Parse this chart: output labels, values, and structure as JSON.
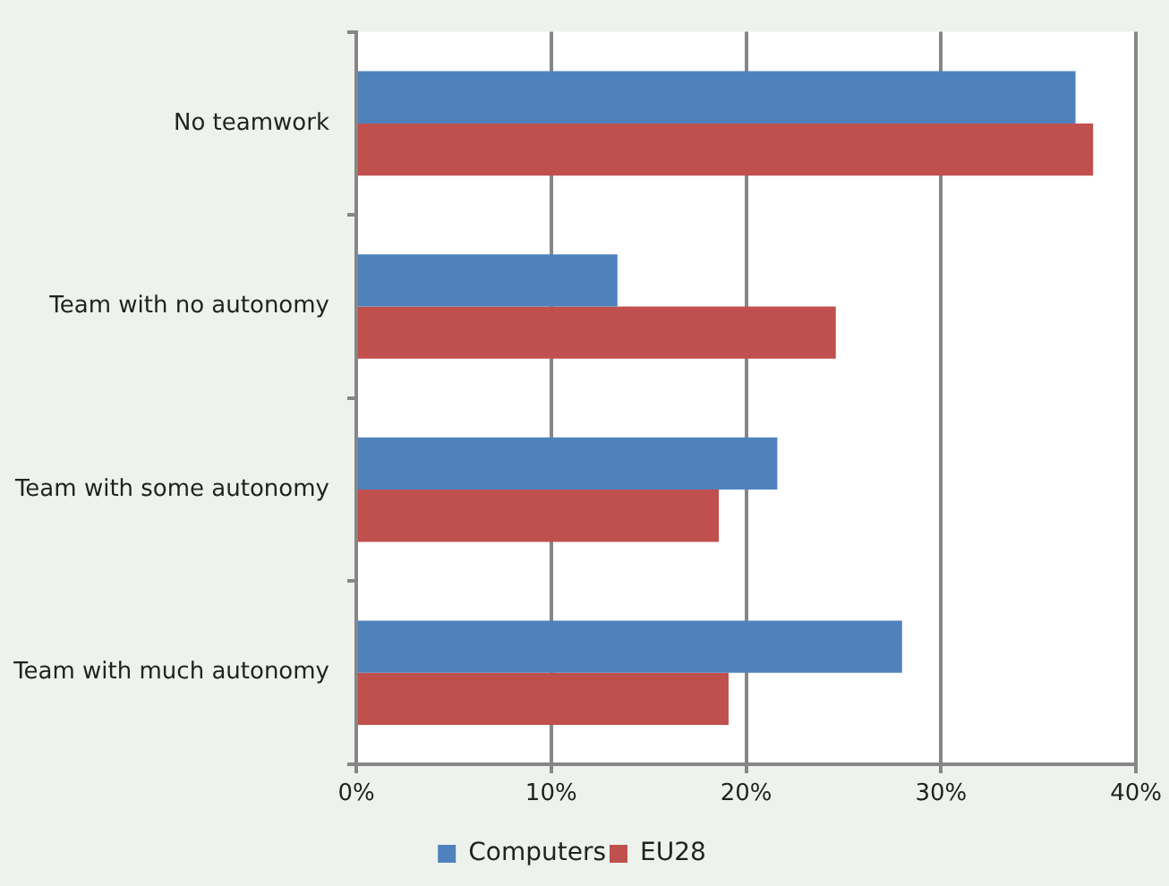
{
  "chart_data": {
    "type": "bar",
    "orientation": "horizontal",
    "categories": [
      "No teamwork",
      "Team with no autonomy",
      "Team with some autonomy",
      "Team with much autonomy"
    ],
    "series": [
      {
        "name": "Computers",
        "color": "#4f81bd",
        "values": [
          36.9,
          13.4,
          21.6,
          28.0
        ]
      },
      {
        "name": "EU28",
        "color": "#c0504d",
        "values": [
          37.8,
          24.6,
          18.6,
          19.1
        ]
      }
    ],
    "xlim": [
      0,
      40
    ],
    "xticks": [
      {
        "value": 0,
        "label": "0%"
      },
      {
        "value": 10,
        "label": "10%"
      },
      {
        "value": 20,
        "label": "20%"
      },
      {
        "value": 30,
        "label": "30%"
      },
      {
        "value": 40,
        "label": "40%"
      }
    ],
    "grid": "x",
    "legend": "bottom"
  }
}
